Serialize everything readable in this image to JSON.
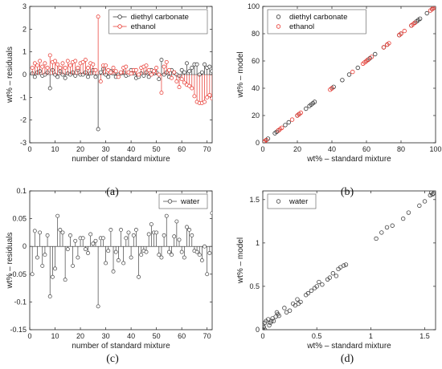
{
  "colors": {
    "black": "#333333",
    "red": "#e8342c",
    "gray": "#444444",
    "axis": "#222222"
  },
  "chart_data": [
    {
      "id": "a",
      "type": "stem",
      "panel_label": "(a)",
      "xlabel": "number of standard mixture",
      "ylabel": "wt% – residuals",
      "xlim": [
        0,
        72
      ],
      "ylim": [
        -3,
        3
      ],
      "xticks": [
        "0",
        "10",
        "20",
        "30",
        "40",
        "50",
        "60",
        "70"
      ],
      "yticks": [
        "-3",
        "-2",
        "-1",
        "0",
        "1",
        "2",
        "3"
      ],
      "legend_position": "top-right",
      "series": [
        {
          "name": "diethyl carbonate",
          "color": "black",
          "x": [
            1,
            2,
            3,
            4,
            5,
            6,
            7,
            8,
            9,
            10,
            11,
            12,
            13,
            14,
            15,
            16,
            17,
            18,
            19,
            20,
            21,
            22,
            23,
            24,
            25,
            26,
            27,
            28,
            29,
            30,
            31,
            32,
            33,
            34,
            35,
            36,
            37,
            38,
            39,
            40,
            41,
            42,
            43,
            44,
            45,
            46,
            47,
            48,
            49,
            50,
            51,
            52,
            53,
            54,
            55,
            56,
            57,
            58,
            59,
            60,
            61,
            62,
            63,
            64,
            65,
            66,
            67,
            68,
            69,
            70,
            71,
            72
          ],
          "y": [
            0.05,
            -0.1,
            0.1,
            0.15,
            -0.05,
            0.0,
            0.1,
            -0.6,
            0.2,
            0.0,
            -0.1,
            0.15,
            0.0,
            -0.15,
            0.05,
            0.0,
            0.1,
            -0.05,
            0.2,
            0.0,
            0.0,
            0.1,
            -0.1,
            0.05,
            0.2,
            -0.1,
            -2.4,
            0.1,
            0.25,
            0.0,
            -0.1,
            0.15,
            0.05,
            -0.1,
            0.0,
            0.05,
            0.1,
            -0.05,
            0.0,
            0.2,
            0.05,
            -0.15,
            -0.1,
            0.05,
            -0.05,
            0.1,
            -0.1,
            0.2,
            0.05,
            0.1,
            -0.2,
            0.65,
            0.0,
            0.1,
            -0.1,
            0.2,
            0.1,
            0.0,
            -0.05,
            0.2,
            0.1,
            0.5,
            0.15,
            0.3,
            0.45,
            0.45,
            0.0,
            0.1,
            0.45,
            0.3,
            0.35,
            0.15
          ]
        },
        {
          "name": "ethanol",
          "color": "red",
          "x": [
            1,
            2,
            3,
            4,
            5,
            6,
            7,
            8,
            9,
            10,
            11,
            12,
            13,
            14,
            15,
            16,
            17,
            18,
            19,
            20,
            21,
            22,
            23,
            24,
            25,
            26,
            27,
            28,
            29,
            30,
            31,
            32,
            33,
            34,
            35,
            36,
            37,
            38,
            39,
            40,
            41,
            42,
            43,
            44,
            45,
            46,
            47,
            48,
            49,
            50,
            51,
            52,
            53,
            54,
            55,
            56,
            57,
            58,
            59,
            60,
            61,
            62,
            63,
            64,
            65,
            66,
            67,
            68,
            69,
            70,
            71,
            72
          ],
          "y": [
            0.3,
            0.5,
            0.4,
            0.6,
            0.35,
            0.5,
            0.3,
            0.85,
            0.55,
            0.6,
            0.45,
            0.3,
            0.5,
            0.3,
            0.6,
            0.4,
            0.55,
            0.6,
            0.3,
            0.5,
            0.55,
            0.65,
            0.3,
            0.5,
            0.45,
            0.2,
            2.55,
            -0.3,
            0.4,
            0.4,
            0.2,
            0.1,
            0.3,
            0.15,
            -0.1,
            0.1,
            0.3,
            0.35,
            0.1,
            0.05,
            0.2,
            0.2,
            0.0,
            0.3,
            0.35,
            0.4,
            0.2,
            0.0,
            0.15,
            0.3,
            0.0,
            -0.8,
            0.35,
            0.55,
            0.2,
            -0.15,
            0.1,
            -0.3,
            -0.55,
            -0.2,
            -0.35,
            -0.45,
            -0.5,
            -0.6,
            -0.95,
            -1.2,
            -1.25,
            -1.25,
            -1.2,
            -1.0,
            -0.9,
            -1.05
          ]
        }
      ]
    },
    {
      "id": "b",
      "type": "scatter",
      "panel_label": "(b)",
      "xlabel": "wt% – standard mixture",
      "ylabel": "wt% – model",
      "xlim": [
        0,
        100
      ],
      "ylim": [
        0,
        100
      ],
      "xticks": [
        "0",
        "20",
        "40",
        "60",
        "80",
        "100"
      ],
      "yticks": [
        "0",
        "20",
        "40",
        "60",
        "80",
        "100"
      ],
      "legend_position": "top-left",
      "series": [
        {
          "name": "diethyl carbonate",
          "color": "black",
          "x": [
            0.5,
            1,
            2,
            3,
            7,
            8,
            9,
            13,
            15,
            20,
            21,
            25,
            27,
            28,
            29,
            30,
            40,
            41,
            46,
            50,
            55,
            60,
            61,
            62,
            65,
            70,
            72,
            79,
            80,
            86,
            88,
            89,
            90,
            91,
            95,
            98,
            99,
            100
          ],
          "y": [
            0.5,
            1,
            2,
            3,
            7,
            8,
            9,
            13,
            15,
            20,
            21,
            25,
            27,
            28,
            29,
            30,
            40,
            41,
            46,
            50,
            55,
            60,
            61,
            62,
            65,
            70,
            72,
            79,
            80,
            86,
            88,
            89,
            90,
            91,
            95,
            98,
            99,
            100
          ]
        },
        {
          "name": "ethanol",
          "color": "red",
          "x": [
            0.5,
            1,
            2,
            9,
            10,
            11,
            17,
            20,
            21,
            22,
            39,
            40,
            52,
            58,
            59,
            60,
            61,
            63,
            70,
            72,
            73,
            79,
            80,
            82,
            86,
            87,
            88,
            97,
            98,
            99,
            100
          ],
          "y": [
            0.5,
            1,
            2,
            9,
            10,
            11,
            17,
            20,
            21,
            22,
            39,
            40,
            52,
            58,
            59,
            60,
            61,
            63,
            70,
            72,
            73,
            79,
            80,
            82,
            86,
            87,
            88,
            97,
            98,
            99,
            100
          ]
        }
      ]
    },
    {
      "id": "c",
      "type": "stem",
      "panel_label": "(c)",
      "xlabel": "number of standard mixture",
      "ylabel": "wt% – residuals",
      "xlim": [
        0,
        72
      ],
      "ylim": [
        -0.15,
        0.1
      ],
      "xticks": [
        "0",
        "10",
        "20",
        "30",
        "40",
        "50",
        "60",
        "70"
      ],
      "yticks": [
        "-0.15",
        "-0.1",
        "-0.05",
        "0",
        "0.05",
        "0.1"
      ],
      "legend_position": "top-right",
      "series": [
        {
          "name": "water",
          "color": "gray",
          "x": [
            1,
            2,
            3,
            4,
            5,
            6,
            7,
            8,
            9,
            10,
            11,
            12,
            13,
            14,
            15,
            16,
            17,
            18,
            19,
            20,
            21,
            22,
            23,
            24,
            25,
            26,
            27,
            28,
            29,
            30,
            31,
            32,
            33,
            34,
            35,
            36,
            37,
            38,
            39,
            40,
            41,
            42,
            43,
            44,
            45,
            46,
            47,
            48,
            49,
            50,
            51,
            52,
            53,
            54,
            55,
            56,
            57,
            58,
            59,
            60,
            61,
            62,
            63,
            64,
            65,
            66,
            67,
            68,
            69,
            70,
            71,
            72
          ],
          "y": [
            -0.05,
            0.028,
            -0.02,
            0.025,
            -0.035,
            -0.015,
            0.02,
            -0.09,
            -0.055,
            -0.04,
            0.055,
            0.03,
            0.025,
            -0.06,
            -0.005,
            0.02,
            -0.035,
            0.01,
            -0.02,
            0.015,
            0.015,
            -0.005,
            -0.012,
            0.022,
            0.005,
            0.01,
            -0.108,
            0.015,
            0.015,
            -0.03,
            -0.008,
            0.03,
            -0.045,
            -0.01,
            -0.025,
            0.03,
            -0.03,
            0.015,
            0.025,
            -0.02,
            0.02,
            0.03,
            -0.055,
            -0.015,
            -0.008,
            -0.01,
            0.022,
            0.04,
            0.025,
            0.025,
            -0.015,
            -0.02,
            0.02,
            0.055,
            -0.01,
            -0.015,
            0.018,
            0.045,
            0.012,
            -0.01,
            -0.02,
            0.035,
            0.03,
            0.02,
            -0.008,
            -0.01,
            -0.015,
            -0.025,
            0.0,
            -0.05,
            -0.012,
            0.06
          ]
        }
      ]
    },
    {
      "id": "d",
      "type": "scatter",
      "panel_label": "(d)",
      "xlabel": "wt% – standard mixture",
      "ylabel": "wt% – model",
      "xlim": [
        0,
        1.6
      ],
      "ylim": [
        0,
        1.6
      ],
      "xticks": [
        "0",
        "0.5",
        "1",
        "1.5"
      ],
      "yticks": [
        "0",
        "0.5",
        "1",
        "1.5"
      ],
      "legend_position": "top-left",
      "series": [
        {
          "name": "water",
          "color": "gray",
          "x": [
            0.0,
            0.0,
            0.0,
            0.01,
            0.02,
            0.02,
            0.03,
            0.05,
            0.06,
            0.07,
            0.08,
            0.09,
            0.1,
            0.12,
            0.13,
            0.14,
            0.15,
            0.2,
            0.22,
            0.25,
            0.28,
            0.3,
            0.32,
            0.33,
            0.35,
            0.4,
            0.42,
            0.45,
            0.48,
            0.5,
            0.52,
            0.55,
            0.6,
            0.62,
            0.65,
            0.68,
            0.7,
            0.72,
            0.75,
            0.77,
            1.05,
            1.1,
            1.15,
            1.2,
            1.3,
            1.35,
            1.45,
            1.5,
            1.55,
            1.56,
            1.57,
            1.58
          ],
          "y": [
            0.0,
            0.05,
            -0.02,
            0.03,
            0.08,
            0.0,
            0.1,
            0.12,
            0.05,
            0.08,
            0.1,
            0.13,
            0.1,
            0.15,
            0.2,
            0.18,
            0.16,
            0.25,
            0.2,
            0.22,
            0.3,
            0.28,
            0.35,
            0.3,
            0.32,
            0.4,
            0.42,
            0.45,
            0.48,
            0.5,
            0.55,
            0.52,
            0.58,
            0.6,
            0.65,
            0.62,
            0.7,
            0.72,
            0.74,
            0.75,
            1.05,
            1.12,
            1.18,
            1.2,
            1.28,
            1.35,
            1.43,
            1.48,
            1.55,
            1.58,
            1.56,
            1.57
          ]
        }
      ]
    }
  ]
}
